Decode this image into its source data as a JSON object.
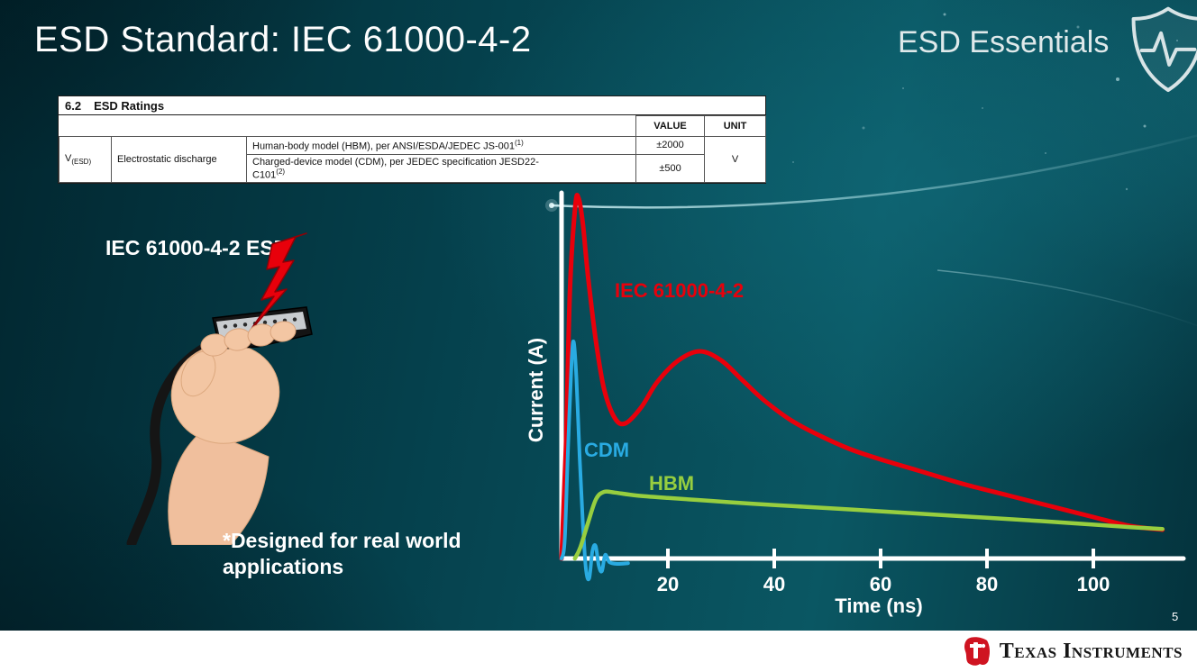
{
  "slide": {
    "title": "ESD Standard: IEC 61000-4-2",
    "series_label": "ESD Essentials",
    "page_number": "5",
    "illustration_label": "IEC 61000-4-2 ESD",
    "footnote": "*Designed for real world\napplications"
  },
  "ratings_table": {
    "section_number": "6.2",
    "section_title": "ESD Ratings",
    "value_header": "VALUE",
    "unit_header": "UNIT",
    "symbol": "V",
    "symbol_subscript": "(ESD)",
    "parameter": "Electrostatic discharge",
    "rows": [
      {
        "model": "Human-body model (HBM), per ANSI/ESDA/JEDEC JS-001",
        "footnote_ref": "(1)",
        "value": "±2000"
      },
      {
        "model": "Charged-device model (CDM), per JEDEC specification JESD22-\nC101",
        "footnote_ref": "(2)",
        "value": "±500"
      }
    ],
    "unit": "V"
  },
  "chart_data": {
    "type": "line",
    "title": "",
    "xlabel": "Time (ns)",
    "ylabel": "Current (A)",
    "x_ticks": [
      20,
      40,
      60,
      80,
      100
    ],
    "xlim": [
      0,
      117
    ],
    "ylim": [
      -0.06,
      1.05
    ],
    "grid": false,
    "legend": "inline-labels",
    "series": [
      {
        "name": "IEC 61000-4-2",
        "color": "#e8000b",
        "stroke_width": 5,
        "points": [
          [
            0,
            0
          ],
          [
            0.8,
            0.3
          ],
          [
            1.6,
            0.75
          ],
          [
            2.6,
            0.98
          ],
          [
            3.2,
            1.0
          ],
          [
            4,
            0.93
          ],
          [
            5,
            0.78
          ],
          [
            6.5,
            0.6
          ],
          [
            8,
            0.47
          ],
          [
            10,
            0.39
          ],
          [
            12,
            0.375
          ],
          [
            15,
            0.42
          ],
          [
            18,
            0.49
          ],
          [
            22,
            0.55
          ],
          [
            26,
            0.575
          ],
          [
            30,
            0.55
          ],
          [
            34,
            0.495
          ],
          [
            38,
            0.44
          ],
          [
            43,
            0.385
          ],
          [
            48,
            0.345
          ],
          [
            54,
            0.305
          ],
          [
            60,
            0.275
          ],
          [
            68,
            0.24
          ],
          [
            76,
            0.205
          ],
          [
            84,
            0.175
          ],
          [
            92,
            0.145
          ],
          [
            100,
            0.115
          ],
          [
            107,
            0.09
          ],
          [
            113,
            0.08
          ]
        ]
      },
      {
        "name": "CDM",
        "color": "#29abe2",
        "stroke_width": 4,
        "points": [
          [
            0,
            0
          ],
          [
            0.6,
            0.05
          ],
          [
            1.2,
            0.3
          ],
          [
            1.9,
            0.55
          ],
          [
            2.3,
            0.6
          ],
          [
            2.8,
            0.5
          ],
          [
            3.4,
            0.28
          ],
          [
            4,
            0.1
          ],
          [
            4.6,
            -0.03
          ],
          [
            5.2,
            -0.055
          ],
          [
            5.8,
            0.02
          ],
          [
            6.4,
            0.035
          ],
          [
            7,
            -0.02
          ],
          [
            7.6,
            -0.035
          ],
          [
            8.2,
            0.01
          ],
          [
            9,
            -0.01
          ],
          [
            10.5,
            -0.015
          ],
          [
            12.5,
            -0.013
          ]
        ]
      },
      {
        "name": "HBM",
        "color": "#97ce3f",
        "stroke_width": 4.5,
        "points": [
          [
            2.5,
            0
          ],
          [
            3.5,
            0.03
          ],
          [
            5,
            0.1
          ],
          [
            6.5,
            0.165
          ],
          [
            8,
            0.185
          ],
          [
            10,
            0.183
          ],
          [
            14,
            0.175
          ],
          [
            20,
            0.168
          ],
          [
            28,
            0.16
          ],
          [
            36,
            0.152
          ],
          [
            44,
            0.145
          ],
          [
            52,
            0.138
          ],
          [
            60,
            0.131
          ],
          [
            70,
            0.122
          ],
          [
            80,
            0.113
          ],
          [
            90,
            0.104
          ],
          [
            100,
            0.094
          ],
          [
            107,
            0.087
          ],
          [
            113,
            0.082
          ]
        ]
      }
    ]
  },
  "footer": {
    "brand": "Texas Instruments"
  }
}
